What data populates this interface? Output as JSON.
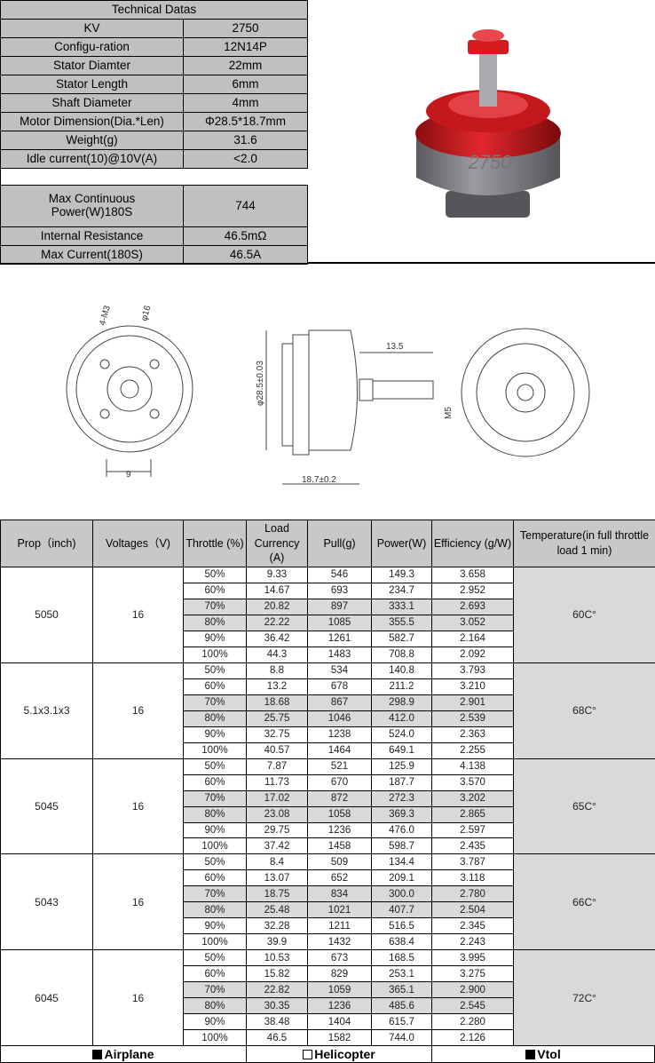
{
  "specs": {
    "title": "Technical Datas",
    "rows": [
      {
        "label": "KV",
        "value": "2750"
      },
      {
        "label": "Configu-ration",
        "value": "12N14P"
      },
      {
        "label": "Stator Diamter",
        "value": "22mm"
      },
      {
        "label": "Stator Length",
        "value": "6mm"
      },
      {
        "label": "Shaft Diameter",
        "value": "4mm"
      },
      {
        "label": "Motor Dimension(Dia.*Len)",
        "value": "Φ28.5*18.7mm"
      },
      {
        "label": "Weight(g)",
        "value": "31.6"
      },
      {
        "label": "Idle current(10)@10V(A)",
        "value": "<2.0"
      }
    ],
    "rows2": [
      {
        "label": "Max Continuous Power(W)180S",
        "value": "744"
      },
      {
        "label": "Internal Resistance",
        "value": "46.5mΩ"
      },
      {
        "label": "Max Current(180S)",
        "value": "46.5A"
      }
    ]
  },
  "drawing": {
    "holes": "4-M3",
    "circle": "φ16",
    "width": "9",
    "shaft_len": "13.5",
    "diameter": "φ28.5±0.03",
    "thread": "M5",
    "length": "18.7±0.2"
  },
  "table": {
    "headers": [
      "Prop（inch)",
      "Voltages（V)",
      "Throttle (%)",
      "Load Currency (A)",
      "Pull(g)",
      "Power(W)",
      "Efficiency (g/W)",
      "Temperature(in full throttle load 1 min)"
    ],
    "groups": [
      {
        "prop": "5050",
        "voltage": "16",
        "temp": "60C°",
        "rows": [
          [
            "50%",
            "9.33",
            "546",
            "149.3",
            "3.658"
          ],
          [
            "60%",
            "14.67",
            "693",
            "234.7",
            "2.952"
          ],
          [
            "70%",
            "20.82",
            "897",
            "333.1",
            "2.693"
          ],
          [
            "80%",
            "22.22",
            "1085",
            "355.5",
            "3.052"
          ],
          [
            "90%",
            "36.42",
            "1261",
            "582.7",
            "2.164"
          ],
          [
            "100%",
            "44.3",
            "1483",
            "708.8",
            "2.092"
          ]
        ]
      },
      {
        "prop": "5.1x3.1x3",
        "voltage": "16",
        "temp": "68C°",
        "rows": [
          [
            "50%",
            "8.8",
            "534",
            "140.8",
            "3.793"
          ],
          [
            "60%",
            "13.2",
            "678",
            "211.2",
            "3.210"
          ],
          [
            "70%",
            "18.68",
            "867",
            "298.9",
            "2.901"
          ],
          [
            "80%",
            "25.75",
            "1046",
            "412.0",
            "2.539"
          ],
          [
            "90%",
            "32.75",
            "1238",
            "524.0",
            "2.363"
          ],
          [
            "100%",
            "40.57",
            "1464",
            "649.1",
            "2.255"
          ]
        ]
      },
      {
        "prop": "5045",
        "voltage": "16",
        "temp": "65C°",
        "rows": [
          [
            "50%",
            "7.87",
            "521",
            "125.9",
            "4.138"
          ],
          [
            "60%",
            "11.73",
            "670",
            "187.7",
            "3.570"
          ],
          [
            "70%",
            "17.02",
            "872",
            "272.3",
            "3.202"
          ],
          [
            "80%",
            "23.08",
            "1058",
            "369.3",
            "2.865"
          ],
          [
            "90%",
            "29.75",
            "1236",
            "476.0",
            "2.597"
          ],
          [
            "100%",
            "37.42",
            "1458",
            "598.7",
            "2.435"
          ]
        ]
      },
      {
        "prop": "5043",
        "voltage": "16",
        "temp": "66C°",
        "rows": [
          [
            "50%",
            "8.4",
            "509",
            "134.4",
            "3.787"
          ],
          [
            "60%",
            "13.07",
            "652",
            "209.1",
            "3.118"
          ],
          [
            "70%",
            "18.75",
            "834",
            "300.0",
            "2.780"
          ],
          [
            "80%",
            "25.48",
            "1021",
            "407.7",
            "2.504"
          ],
          [
            "90%",
            "32.28",
            "1211",
            "516.5",
            "2.345"
          ],
          [
            "100%",
            "39.9",
            "1432",
            "638.4",
            "2.243"
          ]
        ]
      },
      {
        "prop": "6045",
        "voltage": "16",
        "temp": "72C°",
        "rows": [
          [
            "50%",
            "10.53",
            "673",
            "168.5",
            "3.995"
          ],
          [
            "60%",
            "15.82",
            "829",
            "253.1",
            "3.275"
          ],
          [
            "70%",
            "22.82",
            "1059",
            "365.1",
            "2.900"
          ],
          [
            "80%",
            "30.35",
            "1236",
            "485.6",
            "2.545"
          ],
          [
            "90%",
            "38.48",
            "1404",
            "615.7",
            "2.280"
          ],
          [
            "100%",
            "46.5",
            "1582",
            "744.0",
            "2.126"
          ]
        ]
      }
    ]
  },
  "footer": [
    {
      "label": "Airplane",
      "checked": true
    },
    {
      "label": "Helicopter",
      "checked": false
    },
    {
      "label": "Vtol",
      "checked": true
    }
  ]
}
